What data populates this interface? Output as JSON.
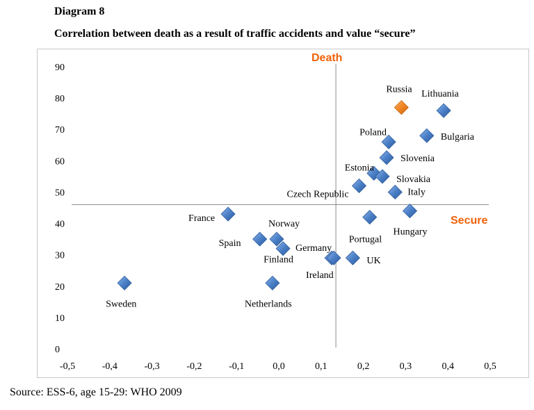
{
  "header": {
    "diagram_label": "Diagram 8",
    "title": "Correlation between death as a result of traffic accidents and value “secure”"
  },
  "footer": {
    "source": "Source: ESS-6, age 15-29: WHO 2009"
  },
  "colors": {
    "marker": "#4a7fc7",
    "highlight_marker": "#f08522",
    "axis_name": "#f0620a"
  },
  "chart_data": {
    "type": "scatter",
    "title": "Correlation between death as a result of traffic accidents and value “secure”",
    "xlabel": "Secure",
    "ylabel": "Death",
    "xlim": [
      -0.5,
      0.5
    ],
    "ylim": [
      0,
      90
    ],
    "x_ticks": [
      "-0,5",
      "-0,4",
      "-0,3",
      "-0,2",
      "-0,1",
      "0,0",
      "0,1",
      "0,2",
      "0,3",
      "0,4",
      "0,5"
    ],
    "y_ticks": [
      "0",
      "10",
      "20",
      "30",
      "40",
      "50",
      "60",
      "70",
      "80",
      "90"
    ],
    "quadrant_lines": {
      "x": 0.135,
      "y": 46
    },
    "grid": false,
    "points": [
      {
        "label": "Russia",
        "x": 0.29,
        "y": 77,
        "highlight": true
      },
      {
        "label": "Lithuania",
        "x": 0.39,
        "y": 76
      },
      {
        "label": "Bulgaria",
        "x": 0.35,
        "y": 68
      },
      {
        "label": "Poland",
        "x": 0.26,
        "y": 66
      },
      {
        "label": "Slovenia",
        "x": 0.255,
        "y": 61
      },
      {
        "label": "Estonia",
        "x": 0.225,
        "y": 56
      },
      {
        "label": "Slovakia",
        "x": 0.245,
        "y": 55
      },
      {
        "label": "Czech Republic",
        "x": 0.19,
        "y": 52
      },
      {
        "label": "Italy",
        "x": 0.275,
        "y": 50
      },
      {
        "label": "Hungary",
        "x": 0.31,
        "y": 44
      },
      {
        "label": "Portugal",
        "x": 0.215,
        "y": 42
      },
      {
        "label": "France",
        "x": -0.12,
        "y": 43
      },
      {
        "label": "Norway",
        "x": -0.005,
        "y": 35
      },
      {
        "label": "Spain",
        "x": -0.045,
        "y": 35
      },
      {
        "label": "Finland",
        "x": 0.01,
        "y": 32
      },
      {
        "label": "Germany",
        "x": 0.125,
        "y": 29
      },
      {
        "label": "UK",
        "x": 0.175,
        "y": 29
      },
      {
        "label": "Ireland",
        "x": 0.13,
        "y": 29
      },
      {
        "label": "Sweden",
        "x": -0.365,
        "y": 21
      },
      {
        "label": "Netherlands",
        "x": -0.015,
        "y": 21
      }
    ]
  }
}
